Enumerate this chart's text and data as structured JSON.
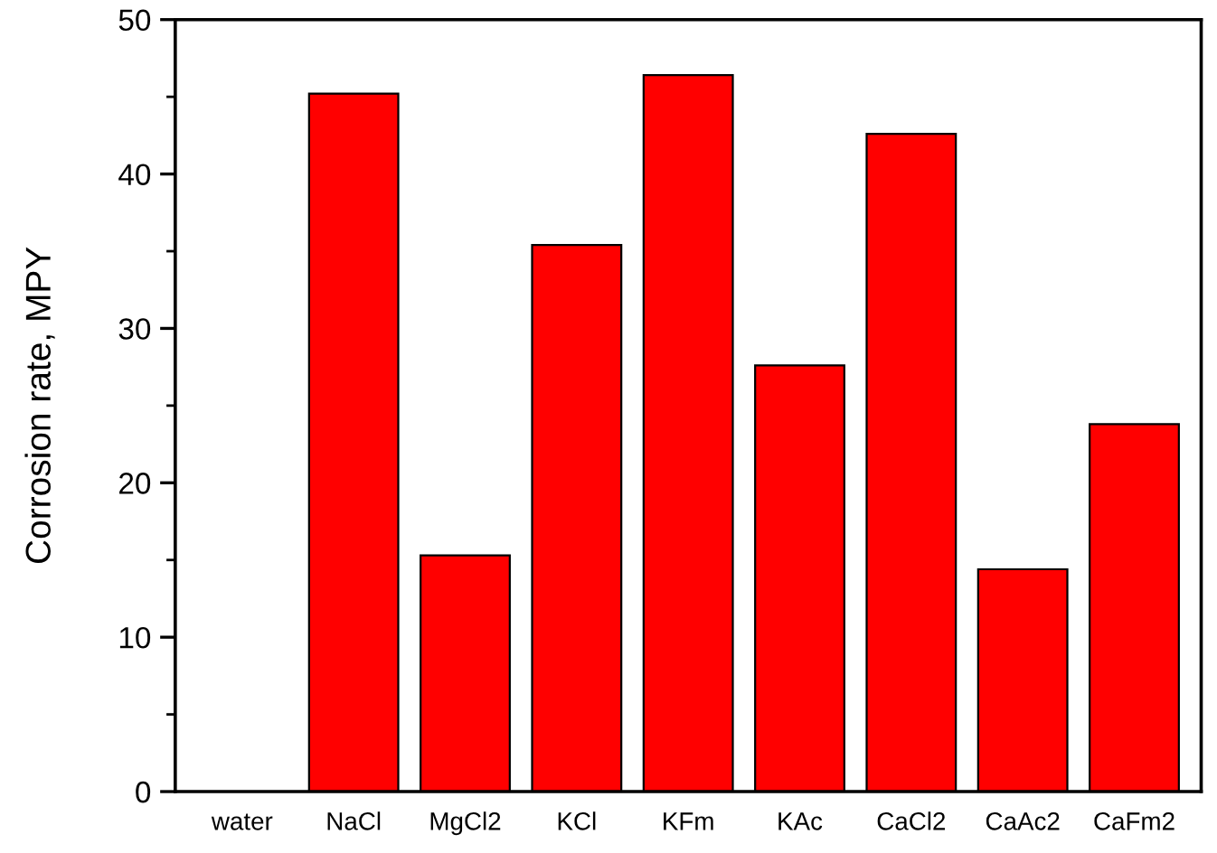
{
  "chart_data": {
    "type": "bar",
    "ylabel": "Corrosion rate, MPY",
    "categories": [
      "water",
      "NaCl",
      "MgCl2",
      "KCl",
      "KFm",
      "KAc",
      "CaCl2",
      "CaAc2",
      "CaFm2"
    ],
    "values": [
      null,
      45.2,
      15.3,
      35.4,
      46.4,
      27.6,
      42.6,
      14.4,
      23.8
    ],
    "color": "#ff0000",
    "ylim": [
      0,
      50
    ],
    "yticks": [
      0,
      {
        "value": 5,
        "label": null
      },
      10,
      {
        "value": 15,
        "label": null
      },
      20,
      {
        "value": 25,
        "label": null
      },
      30,
      {
        "value": 35,
        "label": null
      },
      40,
      {
        "value": 45,
        "label": null
      },
      50
    ],
    "grid": false,
    "legend": false
  }
}
